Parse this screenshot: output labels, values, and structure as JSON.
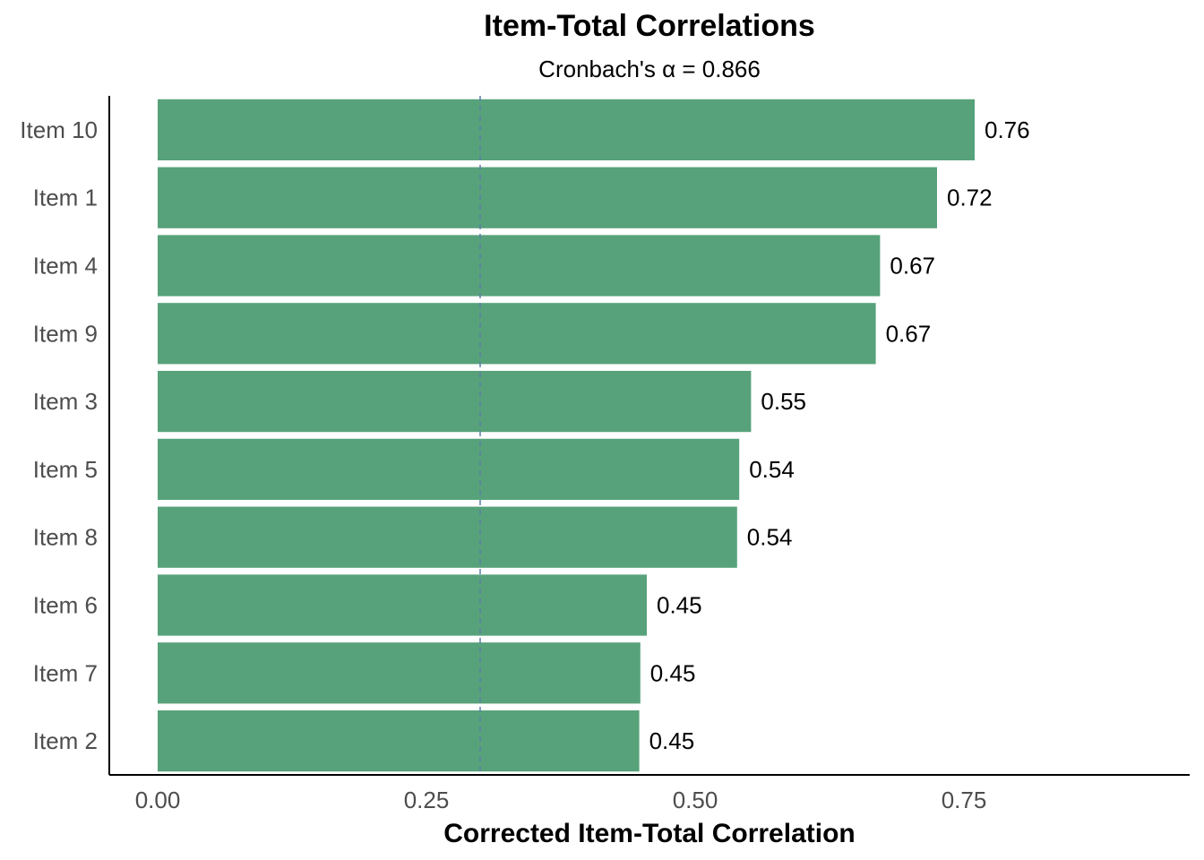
{
  "chart_data": {
    "type": "bar",
    "orientation": "horizontal",
    "title": "Item-Total Correlations",
    "subtitle": "Cronbach's α = 0.866",
    "xlabel": "Corrected Item-Total Correlation",
    "ylabel": "",
    "categories": [
      "Item 10",
      "Item 1",
      "Item 4",
      "Item 9",
      "Item 3",
      "Item 5",
      "Item 8",
      "Item 6",
      "Item 7",
      "Item 2"
    ],
    "values": [
      0.76,
      0.725,
      0.672,
      0.668,
      0.552,
      0.541,
      0.539,
      0.455,
      0.449,
      0.448
    ],
    "value_labels": [
      "0.76",
      "0.72",
      "0.67",
      "0.67",
      "0.55",
      "0.54",
      "0.54",
      "0.45",
      "0.45",
      "0.45"
    ],
    "xticks": [
      0.0,
      0.25,
      0.5,
      0.75
    ],
    "xtick_labels": [
      "0.00",
      "0.25",
      "0.50",
      "0.75"
    ],
    "xlim": [
      -0.045,
      0.96
    ],
    "reference_line": 0.3,
    "grid": false,
    "bar_color": "#57A27A",
    "reference_line_color": "#5B7FA6"
  }
}
